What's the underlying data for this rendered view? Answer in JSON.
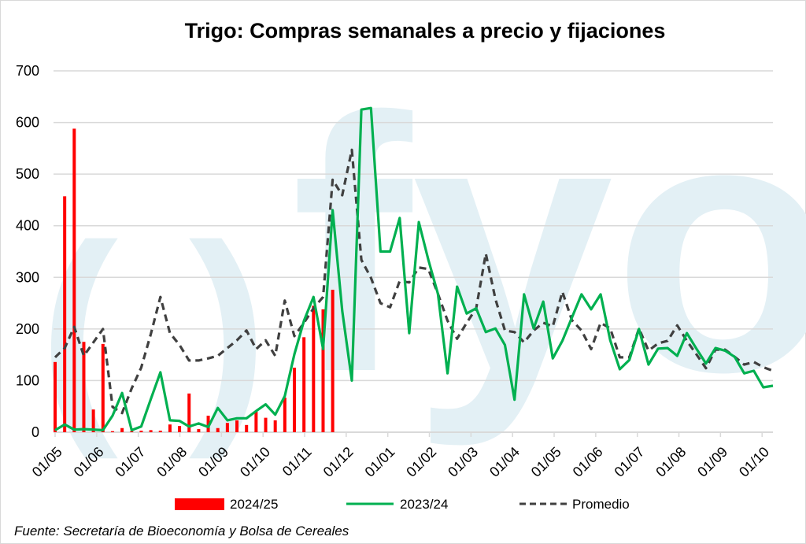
{
  "chart_data": {
    "type": "bar+line",
    "title": "Trigo: Compras semanales a precio y fijaciones",
    "xlabel": "",
    "ylabel": "",
    "ylim": [
      0,
      700
    ],
    "yticks": [
      0,
      100,
      200,
      300,
      400,
      500,
      600,
      700
    ],
    "xtick_labels": [
      "01/05",
      "01/06",
      "01/07",
      "01/08",
      "01/09",
      "01/10",
      "01/11",
      "01/12",
      "01/01",
      "01/02",
      "01/03",
      "01/04",
      "01/05",
      "01/06",
      "01/07",
      "01/08",
      "01/09",
      "01/10"
    ],
    "grid": true,
    "legend_position": "bottom",
    "series": [
      {
        "name": "2024/25",
        "type": "bar",
        "color": "#ff0000",
        "values": [
          136,
          457,
          588,
          175,
          44,
          171,
          2,
          8,
          2,
          3,
          4,
          3,
          15,
          12,
          75,
          6,
          32,
          8,
          18,
          23,
          14,
          40,
          28,
          23,
          67,
          125,
          184,
          245,
          238,
          276
        ]
      },
      {
        "name": "2023/24",
        "type": "line",
        "color": "#00b050",
        "values": [
          4,
          15,
          5,
          6,
          5,
          4,
          32,
          76,
          4,
          11,
          64,
          116,
          23,
          22,
          11,
          17,
          10,
          47,
          23,
          27,
          27,
          41,
          54,
          34,
          70,
          151,
          216,
          262,
          161,
          430,
          235,
          100,
          625,
          628,
          350,
          350,
          415,
          192,
          407,
          334,
          268,
          114,
          282,
          230,
          240,
          194,
          201,
          169,
          63,
          267,
          201,
          253,
          143,
          177,
          222,
          267,
          238,
          267,
          178,
          122,
          140,
          200,
          131,
          162,
          163,
          148,
          192,
          162,
          133,
          163,
          158,
          146,
          114,
          119,
          87,
          90
        ]
      },
      {
        "name": "Promedio",
        "type": "line-dashed",
        "color": "#404040",
        "values": [
          145,
          163,
          204,
          148,
          174,
          200,
          49,
          37,
          85,
          125,
          190,
          262,
          192,
          169,
          139,
          139,
          143,
          148,
          163,
          178,
          197,
          161,
          178,
          148,
          255,
          186,
          212,
          240,
          262,
          489,
          459,
          547,
          334,
          299,
          250,
          242,
          293,
          290,
          319,
          316,
          268,
          216,
          181,
          212,
          240,
          346,
          258,
          197,
          194,
          174,
          197,
          212,
          205,
          272,
          217,
          197,
          161,
          212,
          201,
          145,
          145,
          201,
          158,
          172,
          177,
          207,
          177,
          151,
          124,
          160,
          160,
          146,
          131,
          136,
          126,
          119
        ]
      }
    ]
  },
  "source": "Fuente: Secretaría de Bioeconomía y Bolsa de Cereales",
  "watermark": {
    "text": "fyo",
    "parens": "()",
    "color": "#e3f0f5"
  }
}
